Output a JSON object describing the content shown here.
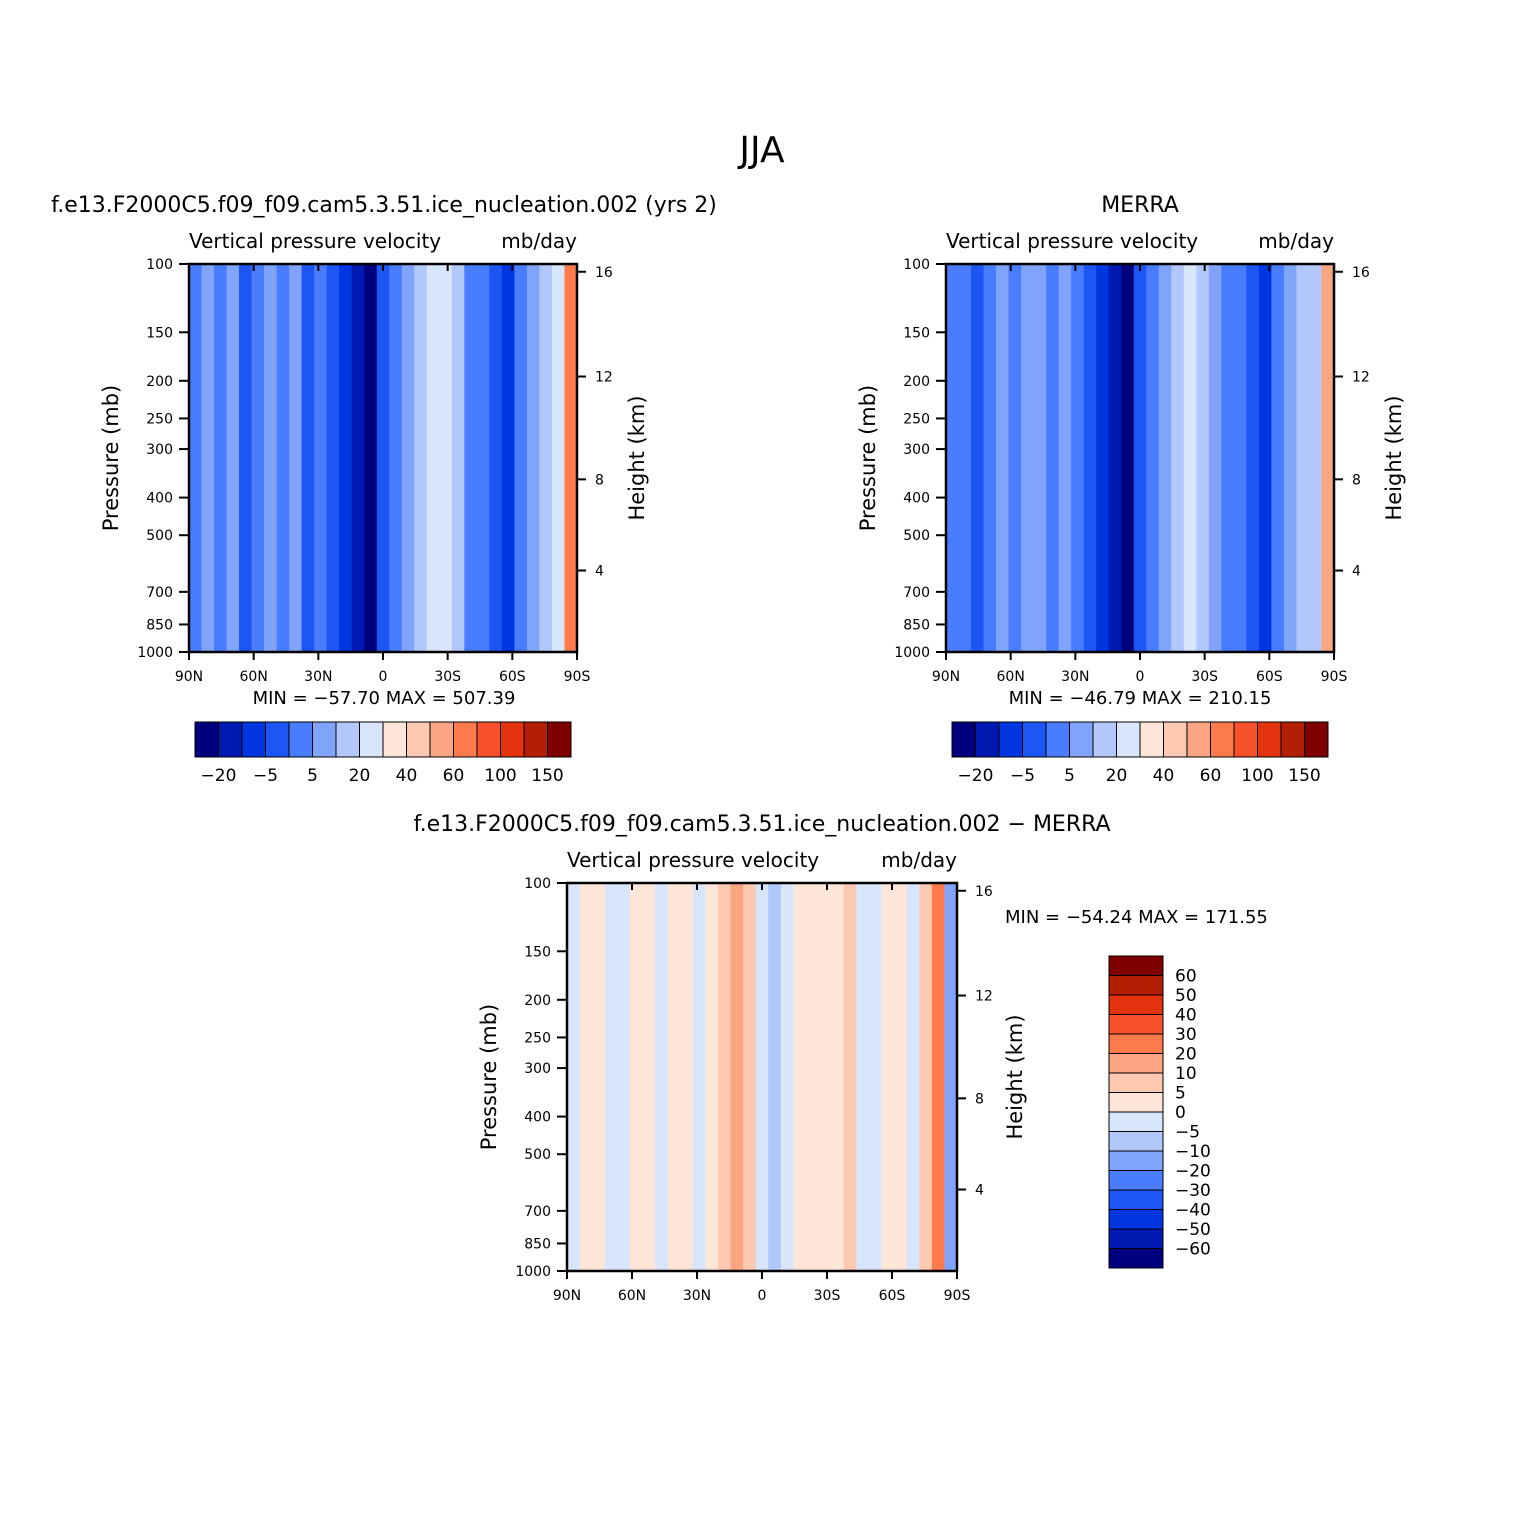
{
  "figure": {
    "title": "JJA"
  },
  "colors": {
    "abs_levels": [
      "#00007e",
      "#0019b0",
      "#0036e0",
      "#1e55f5",
      "#4a7cff",
      "#80a4fa",
      "#b3c8fa",
      "#d8e6fb",
      "#fde5d8",
      "#fdc9b0",
      "#fca583",
      "#fd7a4d",
      "#f7512b",
      "#e4330f",
      "#b31e05",
      "#7f0000"
    ],
    "diff_levels": [
      "#00007e",
      "#0019b0",
      "#0036e0",
      "#1e55f5",
      "#4a7cff",
      "#80a4fa",
      "#b3c8fa",
      "#d8e6fb",
      "#fde5d8",
      "#fdc9b0",
      "#fca583",
      "#fd7a4d",
      "#f7512b",
      "#e4330f",
      "#b31e05",
      "#7f0000"
    ]
  },
  "chart_data": [
    {
      "type": "heatmap",
      "panel": "model",
      "title": "f.e13.F2000C5.f09_f09.cam5.3.51.ice_nucleation.002 (yrs 2)",
      "caption": "Vertical pressure velocity",
      "units": "mb/day",
      "ylabel": "Pressure (mb)",
      "y2label": "Height (km)",
      "x_ticks": [
        "90N",
        "60N",
        "30N",
        "0",
        "30S",
        "60S",
        "90S"
      ],
      "y_ticks": [
        "100",
        "150",
        "200",
        "250",
        "300",
        "400",
        "500",
        "700",
        "850",
        "1000"
      ],
      "y2_ticks": [
        "16",
        "12",
        "8",
        "4"
      ],
      "stats": "MIN = −57.70   MAX = 507.39",
      "colorbar_labels": [
        "−20",
        "−5",
        "5",
        "20",
        "40",
        "60",
        "100",
        "150"
      ],
      "columns": [
        {
          "lat": 90,
          "level": 4
        },
        {
          "lat": 84,
          "level": 5
        },
        {
          "lat": 78,
          "level": 4
        },
        {
          "lat": 72,
          "level": 5
        },
        {
          "lat": 66,
          "level": 3
        },
        {
          "lat": 60,
          "level": 4
        },
        {
          "lat": 54,
          "level": 5
        },
        {
          "lat": 48,
          "level": 4
        },
        {
          "lat": 42,
          "level": 5
        },
        {
          "lat": 36,
          "level": 3
        },
        {
          "lat": 30,
          "level": 4
        },
        {
          "lat": 24,
          "level": 3
        },
        {
          "lat": 18,
          "level": 2
        },
        {
          "lat": 12,
          "level": 1
        },
        {
          "lat": 6,
          "level": 0
        },
        {
          "lat": 0,
          "level": 3
        },
        {
          "lat": -6,
          "level": 4
        },
        {
          "lat": -12,
          "level": 5
        },
        {
          "lat": -18,
          "level": 6
        },
        {
          "lat": -24,
          "level": 7
        },
        {
          "lat": -30,
          "level": 7
        },
        {
          "lat": -36,
          "level": 6
        },
        {
          "lat": -42,
          "level": 4
        },
        {
          "lat": -48,
          "level": 4
        },
        {
          "lat": -54,
          "level": 3
        },
        {
          "lat": -60,
          "level": 2
        },
        {
          "lat": -66,
          "level": 4
        },
        {
          "lat": -72,
          "level": 5
        },
        {
          "lat": -78,
          "level": 6
        },
        {
          "lat": -84,
          "level": 7
        },
        {
          "lat": -90,
          "level": 11
        }
      ]
    },
    {
      "type": "heatmap",
      "panel": "obs",
      "title": "MERRA",
      "caption": "Vertical pressure velocity",
      "units": "mb/day",
      "ylabel": "Pressure (mb)",
      "y2label": "Height (km)",
      "x_ticks": [
        "90N",
        "60N",
        "30N",
        "0",
        "30S",
        "60S",
        "90S"
      ],
      "y_ticks": [
        "100",
        "150",
        "200",
        "250",
        "300",
        "400",
        "500",
        "700",
        "850",
        "1000"
      ],
      "y2_ticks": [
        "16",
        "12",
        "8",
        "4"
      ],
      "stats": "MIN = −46.79   MAX = 210.15",
      "colorbar_labels": [
        "−20",
        "−5",
        "5",
        "20",
        "40",
        "60",
        "100",
        "150"
      ],
      "columns": [
        {
          "lat": 90,
          "level": 4
        },
        {
          "lat": 84,
          "level": 4
        },
        {
          "lat": 78,
          "level": 3
        },
        {
          "lat": 72,
          "level": 4
        },
        {
          "lat": 66,
          "level": 5
        },
        {
          "lat": 60,
          "level": 4
        },
        {
          "lat": 54,
          "level": 5
        },
        {
          "lat": 48,
          "level": 5
        },
        {
          "lat": 42,
          "level": 4
        },
        {
          "lat": 36,
          "level": 5
        },
        {
          "lat": 30,
          "level": 4
        },
        {
          "lat": 24,
          "level": 3
        },
        {
          "lat": 18,
          "level": 2
        },
        {
          "lat": 12,
          "level": 1
        },
        {
          "lat": 6,
          "level": 0
        },
        {
          "lat": 0,
          "level": 3
        },
        {
          "lat": -6,
          "level": 4
        },
        {
          "lat": -12,
          "level": 5
        },
        {
          "lat": -18,
          "level": 6
        },
        {
          "lat": -24,
          "level": 7
        },
        {
          "lat": -30,
          "level": 6
        },
        {
          "lat": -36,
          "level": 5
        },
        {
          "lat": -42,
          "level": 4
        },
        {
          "lat": -48,
          "level": 4
        },
        {
          "lat": -54,
          "level": 3
        },
        {
          "lat": -60,
          "level": 2
        },
        {
          "lat": -66,
          "level": 4
        },
        {
          "lat": -72,
          "level": 5
        },
        {
          "lat": -78,
          "level": 6
        },
        {
          "lat": -84,
          "level": 6
        },
        {
          "lat": -90,
          "level": 10
        }
      ]
    },
    {
      "type": "heatmap",
      "panel": "difference",
      "title": "f.e13.F2000C5.f09_f09.cam5.3.51.ice_nucleation.002 − MERRA",
      "caption": "Vertical pressure velocity",
      "units": "mb/day",
      "ylabel": "Pressure (mb)",
      "y2label": "Height (km)",
      "x_ticks": [
        "90N",
        "60N",
        "30N",
        "0",
        "30S",
        "60S",
        "90S"
      ],
      "y_ticks": [
        "100",
        "150",
        "200",
        "250",
        "300",
        "400",
        "500",
        "700",
        "850",
        "1000"
      ],
      "y2_ticks": [
        "16",
        "12",
        "8",
        "4"
      ],
      "stats": "MIN = −54.24   MAX = 171.55",
      "colorbar_labels": [
        "60",
        "50",
        "40",
        "30",
        "20",
        "10",
        "5",
        "0",
        "−5",
        "−10",
        "−20",
        "−30",
        "−40",
        "−50",
        "−60"
      ],
      "columns": [
        {
          "lat": 90,
          "level": 7
        },
        {
          "lat": 84,
          "level": 8
        },
        {
          "lat": 78,
          "level": 8
        },
        {
          "lat": 72,
          "level": 7
        },
        {
          "lat": 66,
          "level": 7
        },
        {
          "lat": 60,
          "level": 8
        },
        {
          "lat": 54,
          "level": 8
        },
        {
          "lat": 48,
          "level": 7
        },
        {
          "lat": 42,
          "level": 8
        },
        {
          "lat": 36,
          "level": 8
        },
        {
          "lat": 30,
          "level": 7
        },
        {
          "lat": 24,
          "level": 8
        },
        {
          "lat": 18,
          "level": 9
        },
        {
          "lat": 12,
          "level": 10
        },
        {
          "lat": 6,
          "level": 9
        },
        {
          "lat": 0,
          "level": 7
        },
        {
          "lat": -6,
          "level": 6
        },
        {
          "lat": -12,
          "level": 7
        },
        {
          "lat": -18,
          "level": 8
        },
        {
          "lat": -24,
          "level": 8
        },
        {
          "lat": -30,
          "level": 8
        },
        {
          "lat": -36,
          "level": 8
        },
        {
          "lat": -42,
          "level": 9
        },
        {
          "lat": -48,
          "level": 7
        },
        {
          "lat": -54,
          "level": 7
        },
        {
          "lat": -60,
          "level": 8
        },
        {
          "lat": -66,
          "level": 8
        },
        {
          "lat": -72,
          "level": 7
        },
        {
          "lat": -78,
          "level": 9
        },
        {
          "lat": -84,
          "level": 11
        },
        {
          "lat": -90,
          "level": 5
        }
      ]
    }
  ]
}
